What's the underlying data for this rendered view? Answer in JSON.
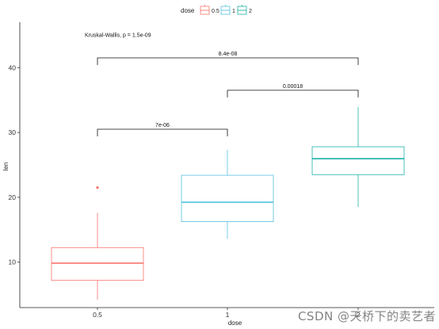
{
  "chart_data": {
    "type": "boxplot",
    "xlabel": "dose",
    "ylabel": "len",
    "categories": [
      "0.5",
      "1",
      "2"
    ],
    "ylim": [
      3,
      47
    ],
    "yticks": [
      10,
      20,
      30,
      40
    ],
    "grid": false,
    "legend": {
      "title": "dose",
      "placement": "top",
      "entries": [
        {
          "label": "0.5",
          "color": "#F8766D"
        },
        {
          "label": "1",
          "color": "#56C1E0"
        },
        {
          "label": "2",
          "color": "#1FB2A8"
        }
      ]
    },
    "boxes": [
      {
        "category": "0.5",
        "min": 4.2,
        "q1": 7.2,
        "median": 9.85,
        "q3": 12.25,
        "max": 17.6,
        "outliers": [
          21.5
        ],
        "color": "#F8766D"
      },
      {
        "category": "1",
        "min": 13.6,
        "q1": 16.25,
        "median": 19.25,
        "q3": 23.4,
        "max": 27.3,
        "outliers": [],
        "color": "#56C1E0"
      },
      {
        "category": "2",
        "min": 18.5,
        "q1": 23.5,
        "median": 25.95,
        "q3": 27.8,
        "max": 33.9,
        "outliers": [],
        "color": "#1FB2A8"
      }
    ],
    "comparisons": [
      {
        "from": "0.5",
        "to": "1",
        "y": 30.5,
        "label": "7e-06"
      },
      {
        "from": "1",
        "to": "2",
        "y": 36.5,
        "label": "0.00018"
      },
      {
        "from": "0.5",
        "to": "2",
        "y": 41.5,
        "label": "8.4e-08"
      }
    ],
    "annotation": {
      "text": "Kruskal-Wallis, p = 1.5e-09",
      "x": "0.5",
      "y": 45
    }
  },
  "watermark": "CSDN @天桥下的卖艺者"
}
